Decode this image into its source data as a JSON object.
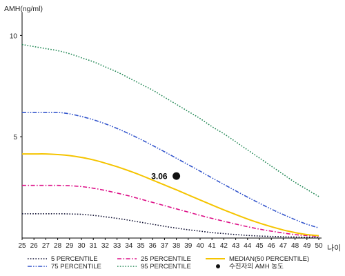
{
  "chart_data": {
    "type": "line",
    "ylabel": "AMH(ng/ml)",
    "xlabel": "나이",
    "x": [
      25,
      26,
      27,
      28,
      29,
      30,
      31,
      32,
      33,
      34,
      35,
      36,
      37,
      38,
      39,
      40,
      41,
      42,
      43,
      44,
      45,
      46,
      47,
      48,
      49,
      50
    ],
    "x_ticks": [
      "25",
      "26",
      "27",
      "28",
      "29",
      "30",
      "31",
      "32",
      "33",
      "34",
      "35",
      "36",
      "37",
      "38",
      "39",
      "40",
      "41",
      "42",
      "43",
      "44",
      "45",
      "46",
      "47",
      "48",
      "49",
      "50"
    ],
    "y_ticks": [
      "5",
      "10"
    ],
    "y_tick_values": [
      5,
      10
    ],
    "ylim": [
      0,
      11
    ],
    "xlim": [
      25,
      50
    ],
    "grid": false,
    "legend_position": "bottom",
    "series": [
      {
        "name": "5 PERCENTILE",
        "color": "#111133",
        "style": "dotted",
        "values": [
          1.2,
          1.2,
          1.2,
          1.2,
          1.19,
          1.17,
          1.12,
          1.05,
          0.97,
          0.88,
          0.78,
          0.68,
          0.58,
          0.49,
          0.41,
          0.34,
          0.27,
          0.22,
          0.17,
          0.13,
          0.1,
          0.08,
          0.06,
          0.05,
          0.04,
          0.03
        ]
      },
      {
        "name": "25 PERCENTILE",
        "color": "#dd1188",
        "style": "dash-dot",
        "values": [
          2.6,
          2.6,
          2.6,
          2.6,
          2.58,
          2.54,
          2.46,
          2.35,
          2.22,
          2.08,
          1.92,
          1.76,
          1.6,
          1.44,
          1.28,
          1.12,
          0.97,
          0.83,
          0.69,
          0.56,
          0.44,
          0.34,
          0.25,
          0.17,
          0.12,
          0.09
        ]
      },
      {
        "name": "MEDIAN(50 PERCENTILE)",
        "color": "#f5c400",
        "style": "solid",
        "values": [
          4.15,
          4.15,
          4.15,
          4.12,
          4.07,
          3.98,
          3.86,
          3.7,
          3.52,
          3.32,
          3.1,
          2.86,
          2.62,
          2.38,
          2.13,
          1.88,
          1.63,
          1.39,
          1.16,
          0.94,
          0.74,
          0.56,
          0.4,
          0.27,
          0.17,
          0.12
        ]
      },
      {
        "name": "75 PERCENTILE",
        "color": "#3355cc",
        "style": "dash-dot-dot",
        "values": [
          6.2,
          6.2,
          6.2,
          6.2,
          6.13,
          6.0,
          5.84,
          5.64,
          5.41,
          5.15,
          4.87,
          4.57,
          4.26,
          3.94,
          3.62,
          3.3,
          2.97,
          2.65,
          2.33,
          2.02,
          1.72,
          1.43,
          1.16,
          0.91,
          0.68,
          0.5
        ]
      },
      {
        "name": "95 PERCENTILE",
        "color": "#228855",
        "style": "dotted",
        "values": [
          9.55,
          9.45,
          9.35,
          9.25,
          9.1,
          8.9,
          8.7,
          8.45,
          8.2,
          7.9,
          7.6,
          7.3,
          6.95,
          6.6,
          6.25,
          5.9,
          5.5,
          5.15,
          4.75,
          4.35,
          3.95,
          3.55,
          3.15,
          2.75,
          2.4,
          2.05
        ]
      }
    ],
    "marker": {
      "label": "수진자의 AMH 농도",
      "x": 38,
      "y": 3.06,
      "text": "3.06",
      "color": "#111111"
    }
  }
}
